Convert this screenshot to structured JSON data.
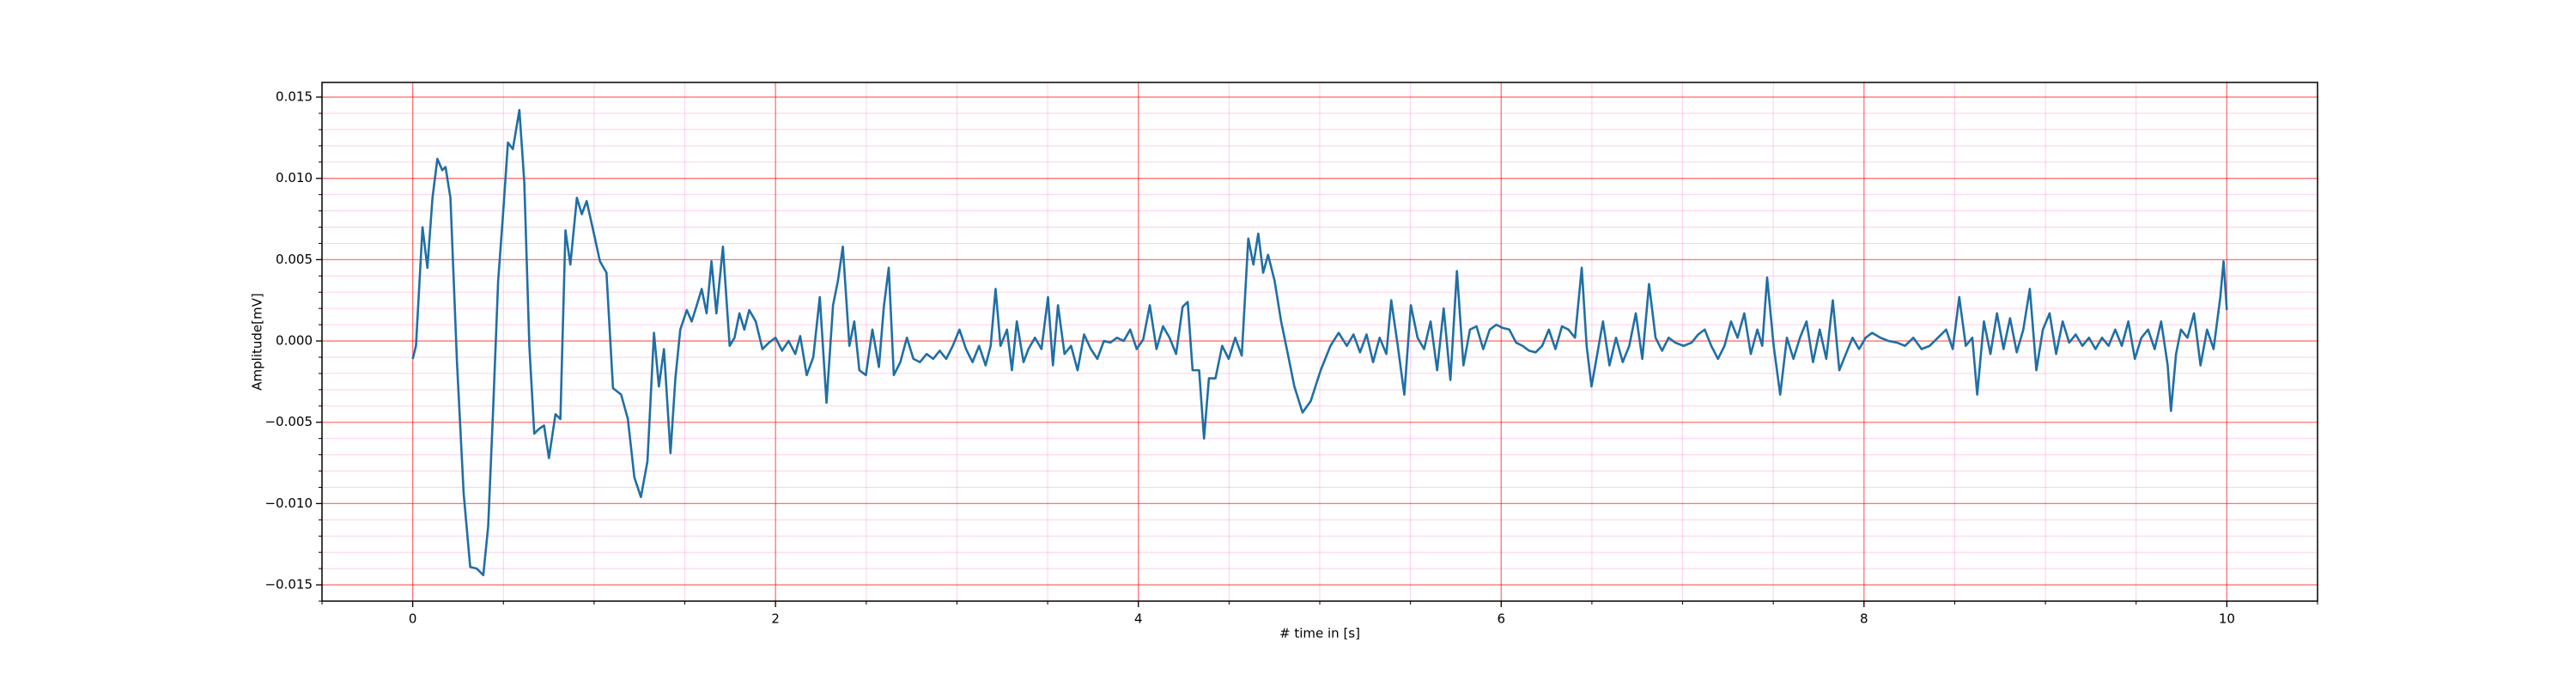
{
  "chart_data": {
    "type": "line",
    "xlabel": "# time in [s]",
    "ylabel": "Amplitude[mV]",
    "color": "#1f6fa5",
    "grid": true,
    "major_grid_color": "#ff0000",
    "minor_grid_color": "#ff9ed8",
    "xlim": [
      -0.5,
      10.5
    ],
    "ylim": [
      -0.016,
      0.0159
    ],
    "xticks": [
      0,
      2,
      4,
      6,
      8,
      10
    ],
    "xminorticks": [
      -0.5,
      0.5,
      1,
      1.5,
      2.5,
      3,
      3.5,
      4.5,
      5,
      5.5,
      6.5,
      7,
      7.5,
      8.5,
      9,
      9.5,
      10.5
    ],
    "yticks": [
      {
        "value": -0.015,
        "label": "−0.015"
      },
      {
        "value": -0.01,
        "label": "−0.010"
      },
      {
        "value": -0.005,
        "label": "−0.005"
      },
      {
        "value": 0,
        "label": "0.000"
      },
      {
        "value": 0.005,
        "label": "0.005"
      },
      {
        "value": 0.01,
        "label": "0.010"
      },
      {
        "value": 0.015,
        "label": "0.015"
      }
    ],
    "yminorticks": [
      -0.016,
      -0.014,
      -0.013,
      -0.012,
      -0.011,
      -0.009,
      -0.008,
      -0.007,
      -0.006,
      -0.004,
      -0.003,
      -0.002,
      -0.001,
      0.001,
      0.002,
      0.003,
      0.004,
      0.006,
      0.007,
      0.008,
      0.009,
      0.011,
      0.012,
      0.013,
      0.014
    ],
    "x": [
      0,
      0.018,
      0.054,
      0.081,
      0.109,
      0.136,
      0.163,
      0.181,
      0.208,
      0.244,
      0.281,
      0.317,
      0.353,
      0.389,
      0.416,
      0.443,
      0.471,
      0.498,
      0.525,
      0.552,
      0.588,
      0.615,
      0.643,
      0.67,
      0.697,
      0.724,
      0.751,
      0.787,
      0.814,
      0.842,
      0.869,
      0.905,
      0.932,
      0.959,
      0.995,
      1.032,
      1.068,
      1.104,
      1.149,
      1.186,
      1.222,
      1.258,
      1.294,
      1.33,
      1.357,
      1.385,
      1.421,
      1.448,
      1.475,
      1.511,
      1.538,
      1.566,
      1.593,
      1.62,
      1.647,
      1.674,
      1.71,
      1.747,
      1.774,
      1.801,
      1.828,
      1.855,
      1.891,
      1.928,
      1.964,
      2.0,
      2.036,
      2.072,
      2.109,
      2.136,
      2.172,
      2.208,
      2.244,
      2.281,
      2.317,
      2.344,
      2.371,
      2.407,
      2.434,
      2.462,
      2.498,
      2.534,
      2.57,
      2.597,
      2.624,
      2.652,
      2.688,
      2.724,
      2.76,
      2.796,
      2.833,
      2.869,
      2.905,
      2.941,
      2.977,
      3.014,
      3.05,
      3.086,
      3.122,
      3.158,
      3.186,
      3.213,
      3.24,
      3.276,
      3.303,
      3.33,
      3.367,
      3.394,
      3.43,
      3.466,
      3.502,
      3.529,
      3.557,
      3.593,
      3.629,
      3.665,
      3.701,
      3.738,
      3.774,
      3.81,
      3.846,
      3.882,
      3.919,
      3.955,
      3.991,
      4.027,
      4.063,
      4.1,
      4.136,
      4.172,
      4.208,
      4.244,
      4.272,
      4.299,
      4.335,
      4.362,
      4.389,
      4.425,
      4.462,
      4.498,
      4.534,
      4.57,
      4.606,
      4.634,
      4.661,
      4.688,
      4.715,
      4.751,
      4.787,
      4.824,
      4.86,
      4.905,
      4.95,
      5.005,
      5.059,
      5.104,
      5.149,
      5.186,
      5.222,
      5.258,
      5.294,
      5.33,
      5.367,
      5.394,
      5.43,
      5.466,
      5.502,
      5.539,
      5.575,
      5.611,
      5.647,
      5.683,
      5.72,
      5.756,
      5.792,
      5.828,
      5.864,
      5.901,
      5.937,
      5.973,
      6.009,
      6.045,
      6.082,
      6.118,
      6.154,
      6.19,
      6.226,
      6.263,
      6.299,
      6.335,
      6.371,
      6.407,
      6.444,
      6.471,
      6.498,
      6.525,
      6.561,
      6.597,
      6.633,
      6.67,
      6.706,
      6.742,
      6.778,
      6.815,
      6.851,
      6.887,
      6.923,
      6.959,
      7.005,
      7.05,
      7.086,
      7.122,
      7.158,
      7.195,
      7.231,
      7.267,
      7.303,
      7.34,
      7.376,
      7.412,
      7.439,
      7.466,
      7.502,
      7.538,
      7.575,
      7.611,
      7.647,
      7.683,
      7.719,
      7.756,
      7.792,
      7.828,
      7.864,
      7.9,
      7.937,
      7.973,
      8.009,
      8.045,
      8.09,
      8.136,
      8.181,
      8.226,
      8.272,
      8.317,
      8.362,
      8.407,
      8.453,
      8.489,
      8.525,
      8.561,
      8.597,
      8.624,
      8.661,
      8.697,
      8.733,
      8.769,
      8.805,
      8.842,
      8.878,
      8.914,
      8.95,
      8.986,
      9.023,
      9.059,
      9.095,
      9.131,
      9.167,
      9.204,
      9.24,
      9.276,
      9.312,
      9.348,
      9.385,
      9.421,
      9.457,
      9.493,
      9.529,
      9.566,
      9.602,
      9.638,
      9.674,
      9.692,
      9.72,
      9.747,
      9.783,
      9.819,
      9.855,
      9.891,
      9.927,
      9.964,
      9.982,
      10.0
    ],
    "values": [
      -0.0011,
      -0.0003,
      0.007,
      0.0045,
      0.0088,
      0.0112,
      0.0105,
      0.0107,
      0.0088,
      -0.0013,
      -0.0094,
      -0.0139,
      -0.014,
      -0.0144,
      -0.0114,
      -0.0043,
      0.0037,
      0.0078,
      0.0122,
      0.0118,
      0.0142,
      0.0098,
      -0.0003,
      -0.0057,
      -0.0054,
      -0.0052,
      -0.0072,
      -0.0045,
      -0.0048,
      0.0068,
      0.0047,
      0.0088,
      0.0078,
      0.0086,
      0.0068,
      0.0049,
      0.0042,
      -0.0029,
      -0.0033,
      -0.0048,
      -0.0084,
      -0.0096,
      -0.0074,
      0.0005,
      -0.0028,
      -0.0005,
      -0.0069,
      -0.0023,
      0.0007,
      0.0019,
      0.0012,
      0.0022,
      0.0032,
      0.0017,
      0.0049,
      0.0017,
      0.0058,
      -0.0003,
      0.0002,
      0.0017,
      0.0007,
      0.0019,
      0.0012,
      -0.0005,
      -0.0001,
      0.0002,
      -0.0006,
      0,
      -0.0008,
      0.0003,
      -0.0021,
      -0.001,
      0.0027,
      -0.0038,
      0.0022,
      0.0037,
      0.0058,
      -0.0003,
      0.0012,
      -0.0018,
      -0.0021,
      0.0007,
      -0.0016,
      0.0021,
      0.0045,
      -0.0021,
      -0.0013,
      0.0002,
      -0.0011,
      -0.0013,
      -0.0008,
      -0.0011,
      -0.0006,
      -0.0011,
      -0.0003,
      0.0007,
      -0.0005,
      -0.0013,
      -0.0003,
      -0.0015,
      -0.0003,
      0.0032,
      -0.0003,
      0.0007,
      -0.0018,
      0.0012,
      -0.0013,
      -0.0005,
      0.0002,
      -0.0005,
      0.0027,
      -0.0015,
      0.0022,
      -0.0008,
      -0.0003,
      -0.0018,
      0.0004,
      -0.0005,
      -0.0011,
      0,
      -0.0001,
      0.0002,
      0,
      0.0007,
      -0.0005,
      0.0001,
      0.0022,
      -0.0005,
      0.0009,
      0.0002,
      -0.0008,
      0.0021,
      0.0024,
      -0.0018,
      -0.0018,
      -0.006,
      -0.0023,
      -0.0023,
      -0.0003,
      -0.0011,
      0.0002,
      -0.0009,
      0.0063,
      0.0047,
      0.0066,
      0.0042,
      0.0053,
      0.0037,
      0.0012,
      -0.0008,
      -0.0028,
      -0.0044,
      -0.0037,
      -0.0018,
      -0.0003,
      0.0005,
      -0.0003,
      0.0004,
      -0.0007,
      0.0004,
      -0.0013,
      0.0002,
      -0.0008,
      0.0025,
      -0.0003,
      -0.0033,
      0.0022,
      0.0002,
      -0.0005,
      0.0012,
      -0.0018,
      0.002,
      -0.0024,
      0.0043,
      -0.0015,
      0.0007,
      0.0009,
      -0.0005,
      0.0007,
      0.001,
      0.0008,
      0.0007,
      -0.0001,
      -0.0003,
      -0.0006,
      -0.0007,
      -0.0003,
      0.0007,
      -0.0005,
      0.0009,
      0.0007,
      0.0002,
      0.0045,
      -0.0003,
      -0.0028,
      -0.0011,
      0.0012,
      -0.0015,
      0.0002,
      -0.0013,
      -0.0003,
      0.0017,
      -0.0011,
      0.0035,
      0.0002,
      -0.0006,
      0.0002,
      -0.0001,
      -0.0003,
      -0.0001,
      0.0004,
      0.0007,
      -0.0003,
      -0.0011,
      -0.0003,
      0.0012,
      0.0002,
      0.0017,
      -0.0008,
      0.0007,
      -0.0003,
      0.0039,
      -0.0003,
      -0.0033,
      0.0002,
      -0.0011,
      0.0002,
      0.0012,
      -0.0013,
      0.0007,
      -0.0011,
      0.0025,
      -0.0018,
      -0.0008,
      0.0002,
      -0.0005,
      0.0002,
      0.0005,
      0.0002,
      0,
      -0.0001,
      -0.0003,
      0.0002,
      -0.0005,
      -0.0003,
      0.0002,
      0.0007,
      -0.0005,
      0.0027,
      -0.0003,
      0.0002,
      -0.0033,
      0.0012,
      -0.0008,
      0.0017,
      -0.0005,
      0.0014,
      -0.0007,
      0.0007,
      0.0032,
      -0.0018,
      0.0007,
      0.0017,
      -0.0008,
      0.0012,
      -0.0001,
      0.0004,
      -0.0003,
      0.0002,
      -0.0005,
      0.0002,
      -0.0003,
      0.0007,
      -0.0003,
      0.0012,
      -0.0011,
      0.0002,
      0.0007,
      -0.0005,
      0.0012,
      -0.0015,
      -0.0043,
      -0.0008,
      0.0007,
      0.0002,
      0.0017,
      -0.0015,
      0.0007,
      -0.0005,
      0.0027,
      0.0049,
      0.0019
    ]
  }
}
